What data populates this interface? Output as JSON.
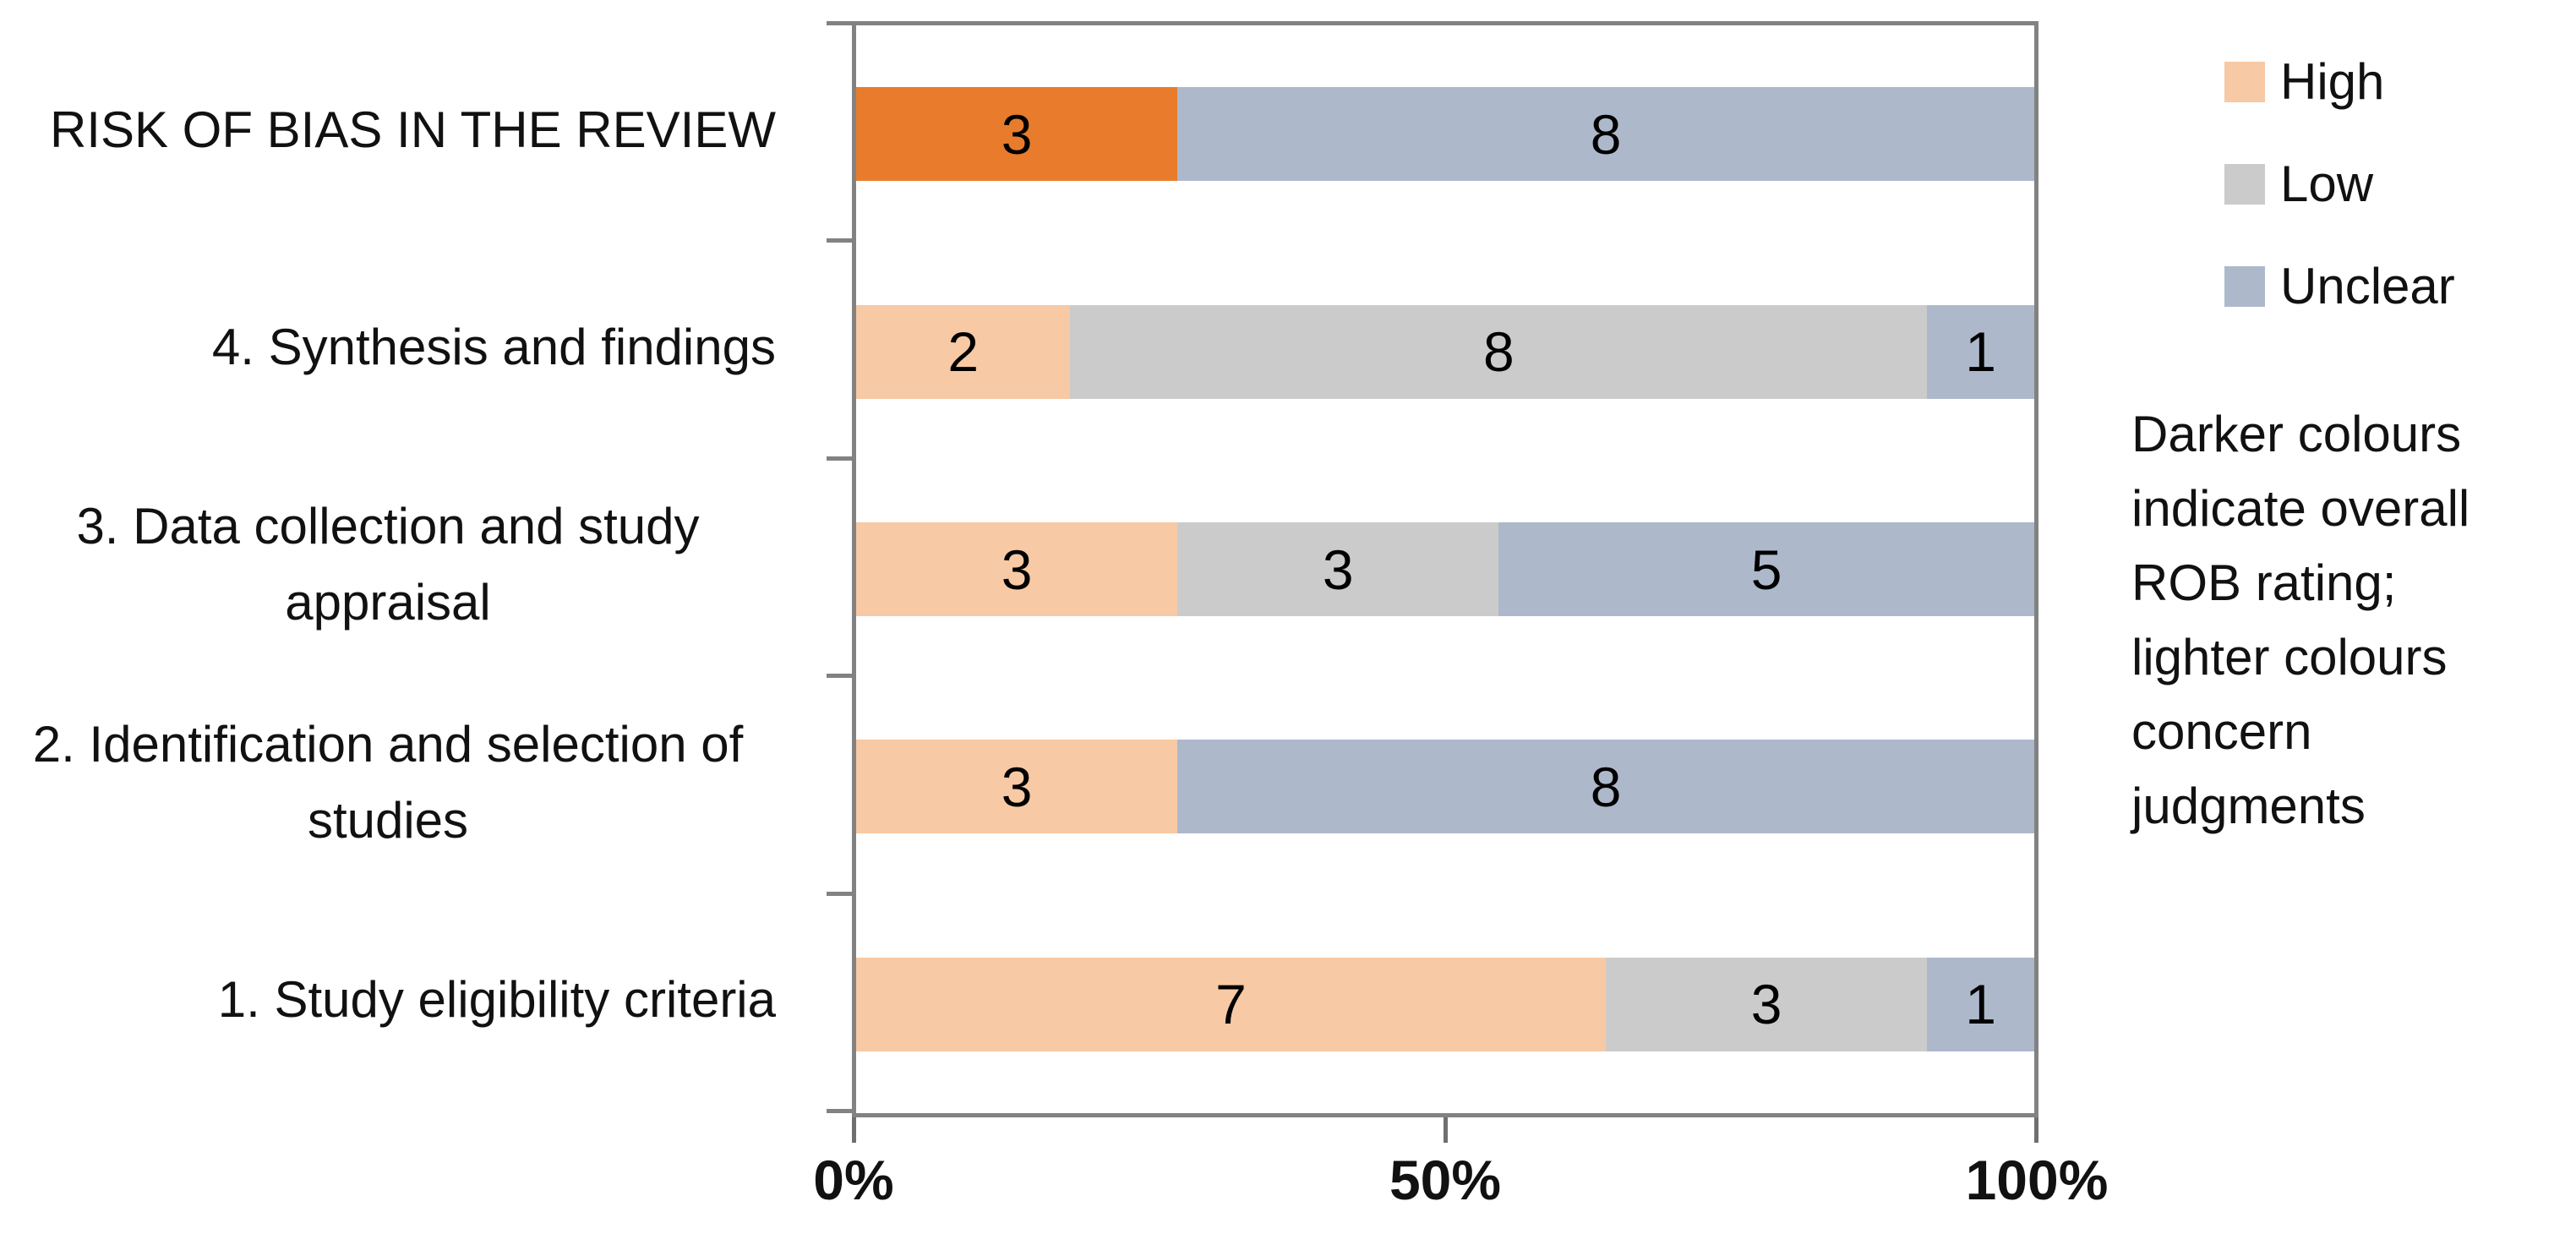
{
  "chart_data": {
    "type": "bar",
    "variant": "horizontal-stacked",
    "title": "",
    "categories": [
      "RISK OF BIAS IN THE REVIEW",
      "4. Synthesis and findings",
      "3. Data collection and study appraisal",
      "2. Identification and selection of studies",
      "1. Study eligibility criteria"
    ],
    "series": [
      {
        "name": "High",
        "values": [
          3,
          2,
          3,
          3,
          7
        ]
      },
      {
        "name": "Low",
        "values": [
          0,
          8,
          3,
          0,
          3
        ]
      },
      {
        "name": "Unclear",
        "values": [
          8,
          1,
          5,
          8,
          1
        ]
      }
    ],
    "row_total": 11,
    "overall_rating_row_index": 0,
    "x_axis": {
      "min": 0,
      "max": 100,
      "ticks": [
        "0%",
        "50%",
        "100%"
      ]
    },
    "grid": false,
    "legend": {
      "position": "right",
      "items": [
        {
          "label": "High",
          "color": "#F7C9A4"
        },
        {
          "label": "Low",
          "color": "#CBCBCB"
        },
        {
          "label": "Unclear",
          "color": "#ADB9CB"
        }
      ]
    },
    "colors": {
      "high_light": "#F7C9A4",
      "high_dark_overall": "#E87C2C",
      "low_light": "#CBCBCB",
      "unclear_light": "#ADB9CB",
      "axis_border": "#828282"
    },
    "annotation": "Darker colours indicate overall ROB rating; lighter colours concern judgments"
  }
}
